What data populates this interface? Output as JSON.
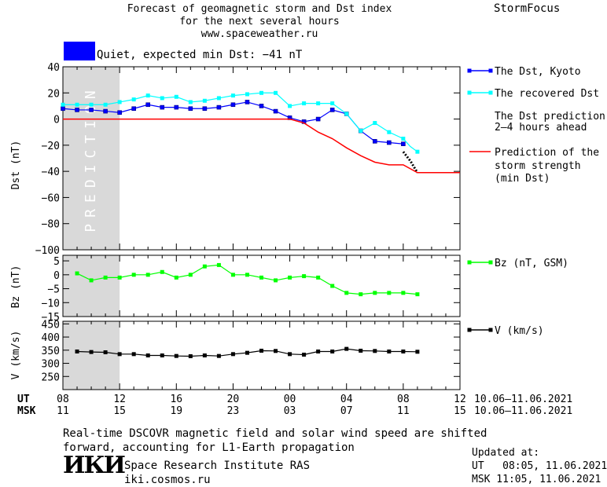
{
  "header": {
    "title_lines": [
      "Forecast of geomagnetic storm and Dst index",
      "for the next several hours",
      "www.spaceweather.ru"
    ],
    "brand": "StormFocus"
  },
  "status": {
    "text": "Quiet, expected min Dst: −41 nT",
    "color": "#0000ff"
  },
  "colors": {
    "dst": "#0000ff",
    "recovered": "#00ffff",
    "prediction": "#ff0000",
    "bz": "#00ff00",
    "v": "#000000",
    "forecast_band": "#d9d9d9"
  },
  "footer": {
    "note_lines": [
      "Real-time DSCOVR magnetic field and solar wind speed are shifted",
      "forward, accounting for L1-Earth propagation"
    ],
    "logo_text": "ИКИ",
    "institute_lines": [
      "Space Research Institute RAS",
      "iki.cosmos.ru"
    ],
    "updated_lines": [
      "Updated at:",
      "UT   08:05, 11.06.2021",
      "MSK 11:05, 11.06.2021"
    ]
  },
  "chart_data": {
    "type": "line",
    "x_unit": "hours",
    "band_label": "PREDICTION",
    "band_x": [
      8,
      12
    ],
    "ut_label": "UT",
    "msk_label": "MSK",
    "ut_ticks": [
      "08",
      "12",
      "16",
      "20",
      "00",
      "04",
      "08",
      "12"
    ],
    "msk_ticks": [
      "11",
      "15",
      "19",
      "23",
      "03",
      "07",
      "11",
      "15"
    ],
    "date_range": "10.06–11.06.2021",
    "panels": [
      {
        "ylabel": "Dst (nT)",
        "ylim": [
          -100,
          40
        ],
        "yticks": [
          40,
          20,
          0,
          -20,
          -40,
          -60,
          -80,
          -100
        ],
        "series": [
          {
            "name": "The Dst, Kyoto",
            "style": "dst",
            "x": [
              8,
              9,
              10,
              11,
              12,
              13,
              14,
              15,
              16,
              17,
              18,
              19,
              20,
              21,
              22,
              23,
              24,
              25,
              26,
              27,
              28,
              29,
              30,
              31,
              32
            ],
            "y": [
              8,
              7,
              7,
              6,
              5,
              8,
              11,
              9,
              9,
              8,
              8,
              9,
              11,
              13,
              10,
              6,
              1,
              -2,
              0,
              7,
              4,
              -9,
              -17,
              -18,
              -19
            ]
          },
          {
            "name": "The recovered Dst",
            "style": "recovered",
            "x": [
              8,
              9,
              10,
              11,
              12,
              13,
              14,
              15,
              16,
              17,
              18,
              19,
              20,
              21,
              22,
              23,
              24,
              25,
              26,
              27,
              28,
              29,
              30,
              31,
              32,
              32.5,
              33
            ],
            "y": [
              11,
              11,
              11,
              11,
              13,
              15,
              18,
              16,
              17,
              13,
              14,
              16,
              18,
              19,
              20,
              20,
              10,
              12,
              12,
              12,
              4,
              -9,
              -3,
              -10,
              -15,
              -21,
              -25
            ]
          },
          {
            "name": "The Dst prediction",
            "name2": "2–4 hours ahead",
            "style": "dstpred",
            "x": [
              32,
              32.5,
              33
            ],
            "y": [
              -25,
              -32,
              -41
            ]
          },
          {
            "name": "Prediction of the",
            "name2": "storm strength",
            "name3": "(min Dst)",
            "style": "prediction",
            "x": [
              8,
              24,
              25,
              26,
              27,
              28,
              29,
              30,
              31,
              32,
              33,
              36
            ],
            "y": [
              0,
              0,
              -3,
              -10,
              -15,
              -22,
              -28,
              -33,
              -35,
              -35,
              -41,
              -41
            ]
          }
        ]
      },
      {
        "ylabel": "Bz (nT)",
        "ylim": [
          -15,
          7
        ],
        "yticks": [
          5,
          0,
          -5,
          -10,
          -15
        ],
        "series": [
          {
            "name": "Bz (nT, GSM)",
            "style": "bz",
            "x": [
              9,
              10,
              11,
              12,
              13,
              14,
              15,
              16,
              17,
              18,
              19,
              20,
              21,
              22,
              23,
              24,
              25,
              26,
              27,
              28,
              29,
              30,
              31,
              32,
              33
            ],
            "y": [
              0.5,
              -2,
              -1,
              -1,
              0,
              0,
              1,
              -1,
              0,
              3,
              3.5,
              0,
              0,
              -1,
              -2,
              -1,
              -0.5,
              -1,
              -4,
              -6.5,
              -7,
              -6.5,
              -6.5,
              -6.5,
              -7
            ]
          }
        ]
      },
      {
        "ylabel": "V (km/s)",
        "ylim": [
          200,
          460
        ],
        "yticks": [
          450,
          400,
          350,
          300,
          250
        ],
        "series": [
          {
            "name": "V (km/s)",
            "style": "v",
            "x": [
              9,
              10,
              11,
              12,
              13,
              14,
              15,
              16,
              17,
              18,
              19,
              20,
              21,
              22,
              23,
              24,
              25,
              26,
              27,
              28,
              29,
              30,
              31,
              32,
              33
            ],
            "y": [
              345,
              343,
              342,
              335,
              335,
              330,
              330,
              328,
              327,
              330,
              328,
              335,
              340,
              348,
              347,
              335,
              333,
              345,
              345,
              355,
              348,
              347,
              345,
              345,
              344
            ]
          }
        ]
      }
    ]
  }
}
